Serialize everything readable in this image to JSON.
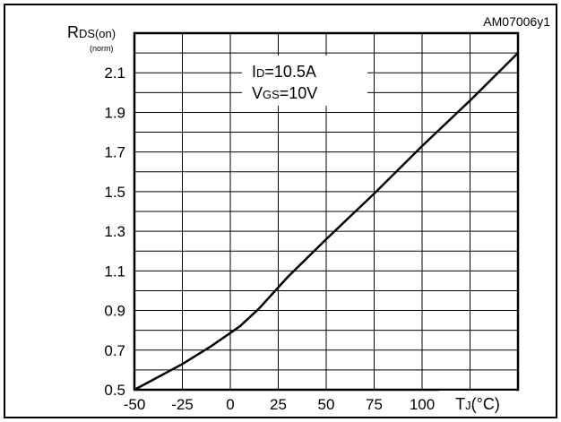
{
  "chart_data": {
    "type": "line",
    "figure_id": "AM07006y1",
    "y_label": {
      "main": "R",
      "sub": "DS(on)",
      "unit": "(norm)"
    },
    "x_label": {
      "main": "T",
      "sub": "J",
      "rest": "(°C)"
    },
    "annotation": [
      {
        "main": "I",
        "sub": "D",
        "rest": "=10.5A"
      },
      {
        "main": "V",
        "sub": "GS",
        "rest": "=10V"
      }
    ],
    "x_ticks": [
      "-50",
      "-25",
      "0",
      "25",
      "50",
      "75",
      "100"
    ],
    "y_ticks": [
      "0.5",
      "0.7",
      "0.9",
      "1.1",
      "1.3",
      "1.5",
      "1.7",
      "1.9",
      "2.1"
    ],
    "xlim": [
      -50,
      150
    ],
    "ylim": [
      0.5,
      2.3
    ],
    "grid": true,
    "series": [
      {
        "x": [
          -50,
          -25,
          -10,
          5,
          15,
          30,
          50,
          75,
          100,
          125,
          150
        ],
        "y": [
          0.5,
          0.63,
          0.72,
          0.82,
          0.91,
          1.07,
          1.26,
          1.49,
          1.73,
          1.96,
          2.2
        ]
      }
    ]
  }
}
